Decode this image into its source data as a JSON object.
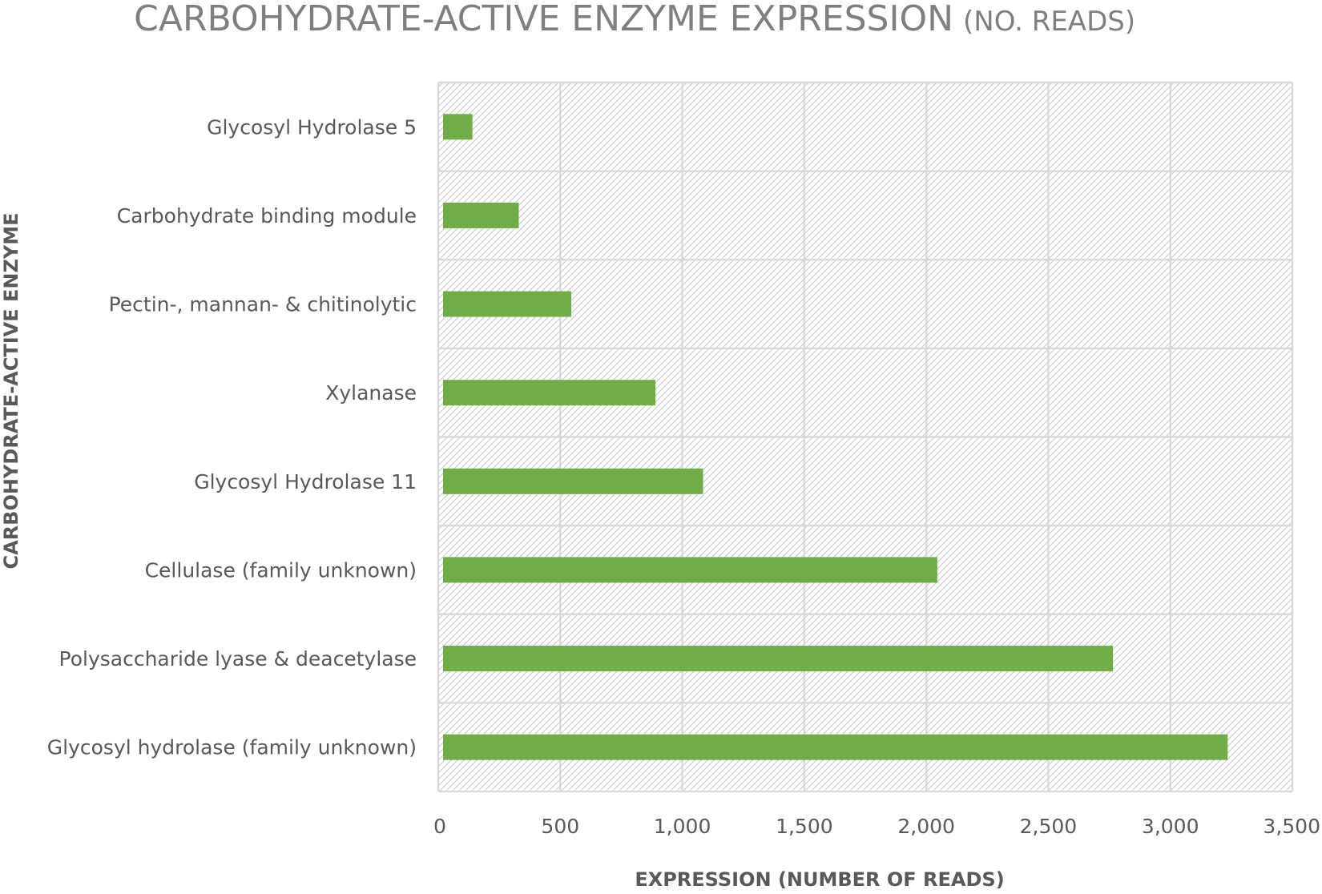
{
  "chart_data": {
    "type": "bar",
    "orientation": "horizontal",
    "title": "CARBOHYDRATE-ACTIVE ENZYME EXPRESSION",
    "subtitle": "(NO. READS)",
    "xlabel": "EXPRESSION (NUMBER OF READS)",
    "ylabel": "CARBOHYDRATE-ACTIVE ENZYME",
    "xlim": [
      0,
      3500
    ],
    "xticks": [
      0,
      500,
      1000,
      1500,
      2000,
      2500,
      3000,
      3500
    ],
    "xtick_labels": [
      "0",
      "500",
      "1,000",
      "1,500",
      "2,000",
      "2,500",
      "3,000",
      "3,500"
    ],
    "categories": [
      "Glycosyl Hydrolase 5",
      "Carbohydrate binding module",
      "Pectin-, mannan- & chitinolytic",
      "Xylanase",
      "Glycosyl Hydrolase 11",
      "Cellulase (family unknown)",
      "Polysaccharide lyase & deacetylase",
      "Glycosyl hydrolase (family unknown)"
    ],
    "values": [
      140,
      330,
      545,
      890,
      1085,
      2045,
      2765,
      3235
    ],
    "grid": true,
    "legend": "none",
    "bar_color": "#70ad47"
  }
}
